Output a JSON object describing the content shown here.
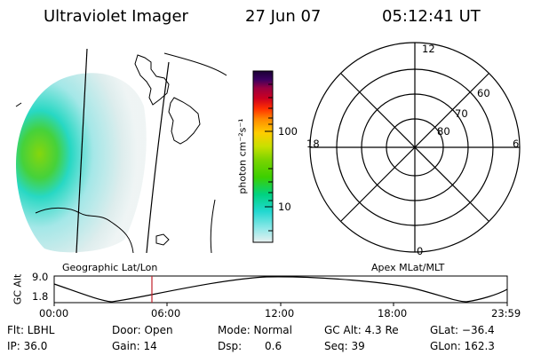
{
  "header": {
    "instrument": "Ultraviolet Imager",
    "date": "27 Jun 07",
    "time": "05:12:41 UT"
  },
  "colorbar": {
    "label": "photon cm⁻²s⁻¹",
    "ticks": [
      "100",
      "10"
    ],
    "scale": "log",
    "colors": [
      "#1a0033",
      "#3b0060",
      "#6a0070",
      "#9b0040",
      "#cc0020",
      "#ff3000",
      "#ff8800",
      "#ffcc00",
      "#c8e000",
      "#7ad400",
      "#3ccf00",
      "#00d280",
      "#22d8d0",
      "#90e8e8",
      "#e8f0f0"
    ]
  },
  "polar": {
    "labels": {
      "top": "12",
      "bottom": "0",
      "left": "18",
      "right": "6"
    },
    "lat_labels": [
      "60",
      "70",
      "80"
    ]
  },
  "captions": {
    "left": "Geographic Lat/Lon",
    "right": "Apex MLat/MLT"
  },
  "altitude_plot": {
    "ylabel": "GC Alt",
    "yticks": [
      "9.0",
      "1.8"
    ],
    "xticks": [
      "00:00",
      "06:00",
      "12:00",
      "18:00",
      "23:59"
    ],
    "marker_time": "05:12"
  },
  "info": {
    "flt": "Flt: LBHL",
    "door": "Door: Open",
    "mode": "Mode: Normal",
    "gcalt": "GC Alt: 4.3 Re",
    "glat": "GLat: −36.4",
    "ip": "IP: 36.0",
    "gain": "Gain: 14",
    "dsp_label": "Dsp:",
    "dsp_value": "0.6",
    "seq": "Seq: 39",
    "glon": "GLon: 162.3"
  }
}
